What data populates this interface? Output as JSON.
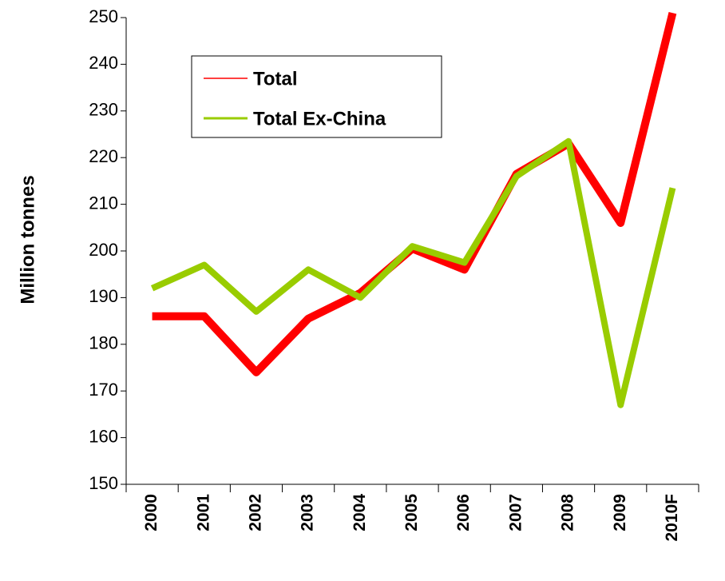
{
  "chart_data": {
    "type": "line",
    "y_label": "Million tonnes",
    "categories": [
      "2000",
      "2001",
      "2002",
      "2003",
      "2004",
      "2005",
      "2006",
      "2007",
      "2008",
      "2009",
      "2010F"
    ],
    "series": [
      {
        "name": "Total",
        "color": "#ff0000",
        "values": [
          186,
          186,
          174,
          185.5,
          191,
          200.5,
          196,
          216.5,
          223,
          206,
          251
        ]
      },
      {
        "name": "Total Ex-China",
        "color": "#99cc00",
        "values": [
          192,
          197,
          187,
          196,
          190,
          201,
          197.5,
          216,
          223.5,
          167,
          213.5
        ]
      }
    ],
    "ylim": [
      150,
      250
    ],
    "yticks": [
      150,
      160,
      170,
      180,
      190,
      200,
      210,
      220,
      230,
      240,
      250
    ],
    "grid": false,
    "legend": "top-left"
  }
}
